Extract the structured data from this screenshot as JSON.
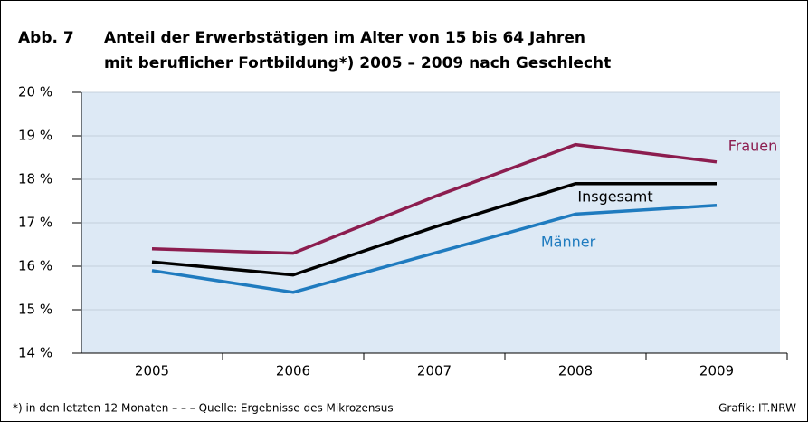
{
  "chart_data": {
    "type": "line",
    "figure_label": "Abb. 7",
    "title": [
      "Anteil der Erwerbstätigen im Alter von 15 bis 64 Jahren",
      "mit beruflicher Fortbildung*) 2005 – 2009 nach Geschlecht"
    ],
    "categories": [
      "2005",
      "2006",
      "2007",
      "2008",
      "2009"
    ],
    "series": [
      {
        "name": "Frauen",
        "color": "#8c1d4f",
        "values": [
          16.4,
          16.3,
          17.6,
          18.8,
          18.4
        ]
      },
      {
        "name": "Insgesamt",
        "color": "#000000",
        "values": [
          16.1,
          15.8,
          16.9,
          17.9,
          17.9
        ]
      },
      {
        "name": "Männer",
        "color": "#1f7bbf",
        "values": [
          15.9,
          15.4,
          16.3,
          17.2,
          17.4
        ]
      }
    ],
    "ylim": [
      14,
      20
    ],
    "yticks": [
      {
        "value": 14,
        "label": "14 %"
      },
      {
        "value": 15,
        "label": "15 %"
      },
      {
        "value": 16,
        "label": "16 %"
      },
      {
        "value": 17,
        "label": "17 %"
      },
      {
        "value": 18,
        "label": "18 %"
      },
      {
        "value": 19,
        "label": "19 %"
      },
      {
        "value": 20,
        "label": "20 %"
      }
    ],
    "grid": true,
    "footnote": "*) in den letzten 12 Monaten – – – Quelle: Ergebnisse des Mikrozensus",
    "credit": "Grafik: IT.NRW"
  }
}
